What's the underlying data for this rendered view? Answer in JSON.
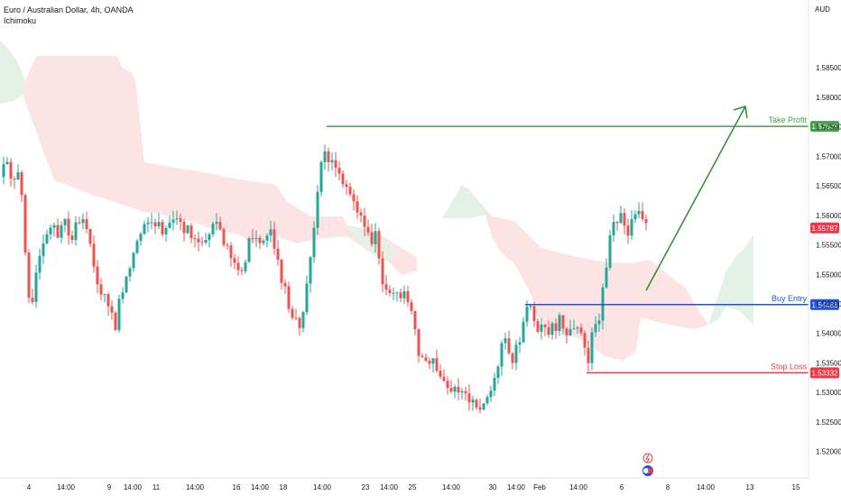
{
  "header": {
    "symbol": "Euro / Australian Dollar, 4h, OANDA",
    "indicator": "Ichimoku"
  },
  "axis_unit": "AUD",
  "chart_data": {
    "type": "candlestick",
    "title": "Euro / Australian Dollar, 4h, OANDA",
    "ylim": [
      1.5155,
      1.5965
    ],
    "y_ticks": [
      "1.58500",
      "1.58000",
      "1.57500",
      "1.57000",
      "1.56500",
      "1.56000",
      "1.55500",
      "1.55000",
      "1.54500",
      "1.54000",
      "1.53500",
      "1.53000",
      "1.52500",
      "1.52000"
    ],
    "x_ticks": [
      "4",
      "14:00",
      "9",
      "14:00",
      "11",
      "14:00",
      "16",
      "14:00",
      "18",
      "14:00",
      "23",
      "14:00",
      "25",
      "14:00",
      "30",
      "14:00",
      "Feb",
      "14:00",
      "6",
      "8",
      "14:00",
      "13",
      "15"
    ],
    "levels": [
      {
        "name": "Take Profit",
        "price": "1.57508",
        "value": 1.57508,
        "color": "#43a047"
      },
      {
        "name": "Buy Entry",
        "price": "1.54488",
        "value": 1.54488,
        "color": "#1e53e5"
      },
      {
        "name": "Stop Loss",
        "price": "1.53332",
        "value": 1.53332,
        "color": "#f23645"
      }
    ],
    "last_price": {
      "price": "1.55787",
      "value": 1.55787,
      "color": "#f23645"
    },
    "colors": {
      "up": "#26a69a",
      "down": "#ef5350",
      "cloud_bear": "#fde4e4",
      "cloud_bull": "#e3f1e6",
      "arrow": "#2e8b2e"
    }
  }
}
